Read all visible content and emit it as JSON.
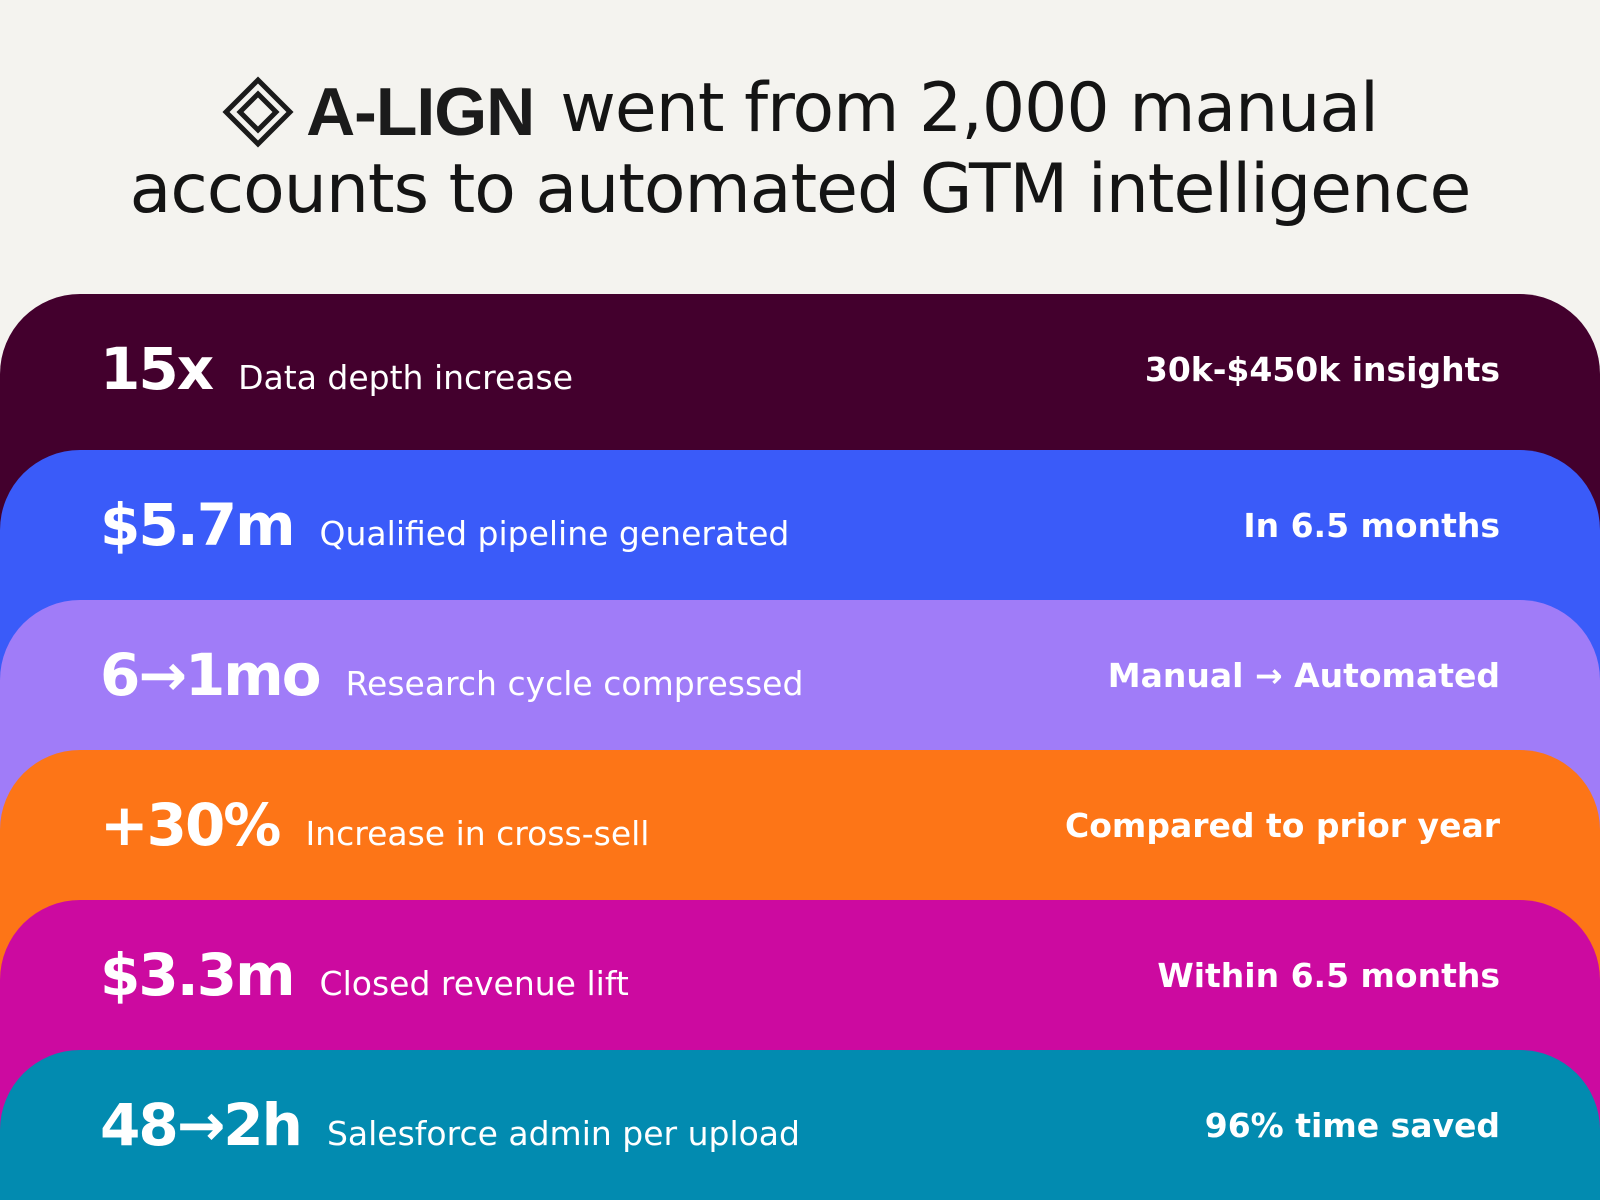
{
  "header": {
    "logo_icon": "diamond-logo-icon",
    "brand": "A-LIGN",
    "headline_line1": "went from 2,000 manual",
    "headline_line2": "accounts to automated GTM intelligence"
  },
  "stats": [
    {
      "metric": "15x",
      "label": "Data depth increase",
      "note": "30k-$450k insights",
      "color": "#43002d"
    },
    {
      "metric": "$5.7m",
      "label": "Qualified pipeline generated",
      "note": "In 6.5 months",
      "color": "#3a5bf9"
    },
    {
      "metric": "6→1mo",
      "label": "Research cycle compressed",
      "note": "Manual → Automated",
      "color": "#a07cf8"
    },
    {
      "metric": "+30%",
      "label": "Increase in cross-sell",
      "note": "Compared to prior year",
      "color": "#fd7517"
    },
    {
      "metric": "$3.3m",
      "label": "Closed revenue lift",
      "note": "Within 6.5 months",
      "color": "#cc0aa0"
    },
    {
      "metric": "48→2h",
      "label": "Salesforce admin per upload",
      "note": "96% time saved",
      "color": "#028bb0"
    }
  ]
}
